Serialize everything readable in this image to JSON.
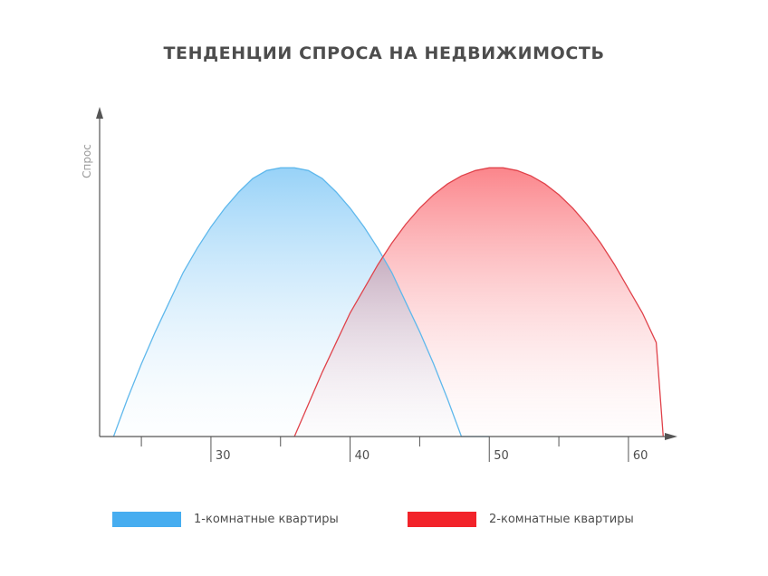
{
  "chart_data": {
    "type": "area",
    "title": "ТЕНДЕНЦИИ СПРОСА НА НЕДВИЖИМОСТЬ",
    "xlabel": "",
    "ylabel": "Спрос",
    "xlim": [
      22,
      63
    ],
    "ylim": [
      0,
      1.2
    ],
    "x_ticks": [
      25,
      30,
      35,
      40,
      45,
      50,
      55,
      60
    ],
    "x_tick_labels": [
      "30",
      "40",
      "50",
      "60"
    ],
    "x_tick_label_values": [
      30,
      40,
      50,
      60
    ],
    "grid": false,
    "legend_position": "bottom",
    "series": [
      {
        "name": "1-комнатные квартиры",
        "color": "#4ab0f2",
        "x": [
          23.0,
          24.0,
          25.0,
          26.0,
          27.0,
          28.0,
          29.0,
          30.0,
          31.0,
          32.0,
          33.0,
          34.0,
          35.0,
          36.0,
          37.0,
          38.0,
          39.0,
          40.0,
          41.0,
          42.0,
          43.0,
          44.0,
          45.0,
          46.0,
          47.0,
          48.0,
          49.0,
          50.0
        ],
        "values": [
          0.0,
          0.14,
          0.27,
          0.39,
          0.5,
          0.61,
          0.7,
          0.78,
          0.85,
          0.91,
          0.96,
          0.99,
          1.0,
          1.0,
          0.99,
          0.96,
          0.91,
          0.85,
          0.78,
          0.7,
          0.61,
          0.5,
          0.39,
          0.27,
          0.14,
          0.0,
          -0.0,
          0.0
        ]
      },
      {
        "name": "2-комнатные квартиры",
        "color": "#f2232a",
        "x": [
          36.0,
          37.0,
          38.0,
          39.0,
          40.0,
          41.0,
          42.0,
          43.0,
          44.0,
          45.0,
          46.0,
          47.0,
          48.0,
          49.0,
          50.0,
          51.0,
          52.0,
          53.0,
          54.0,
          55.0,
          56.0,
          57.0,
          58.0,
          59.0,
          60.0,
          61.0,
          62.0,
          62.5
        ],
        "values": [
          0.0,
          0.12,
          0.24,
          0.35,
          0.46,
          0.55,
          0.64,
          0.72,
          0.79,
          0.85,
          0.9,
          0.94,
          0.97,
          0.99,
          1.0,
          1.0,
          0.99,
          0.97,
          0.94,
          0.9,
          0.85,
          0.79,
          0.72,
          0.64,
          0.55,
          0.46,
          0.35,
          0.0
        ]
      }
    ]
  }
}
